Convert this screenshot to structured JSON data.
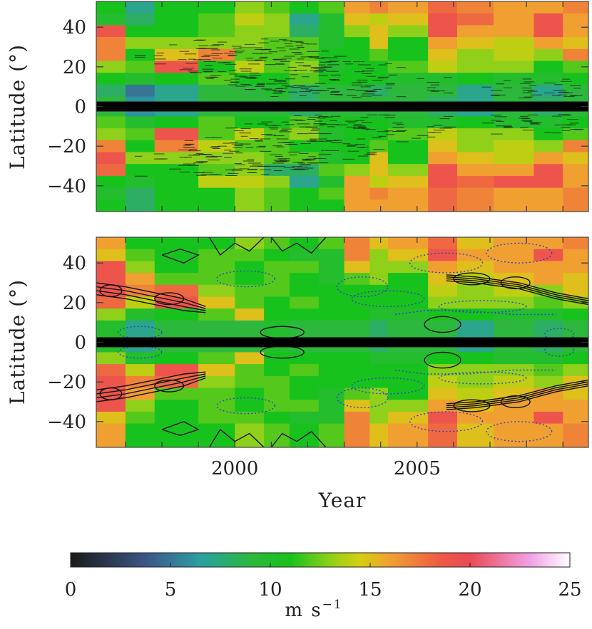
{
  "chart_data": [
    {
      "type": "heatmap",
      "panel": "top",
      "title": "",
      "xlabel": "",
      "ylabel": "Latitude (°)",
      "xlim": [
        1996.2,
        2009.7
      ],
      "ylim": [
        -53,
        53
      ],
      "y_ticks": [
        -40,
        -20,
        0,
        20,
        40
      ],
      "y_tick_labels": [
        "−40",
        "−20",
        "0",
        "20",
        "40"
      ],
      "x_ticks": [
        1997,
        1998,
        1999,
        2000,
        2001,
        2002,
        2003,
        2004,
        2005,
        2006,
        2007,
        2008,
        2009
      ],
      "x_tick_labels": [],
      "x_edges": [
        1996.2,
        1997.0,
        1997.8,
        1999.0,
        2000.0,
        2000.8,
        2001.5,
        2002.3,
        2003.0,
        2003.7,
        2004.2,
        2005.3,
        2006.1,
        2007.1,
        2008.2,
        2009.0,
        2009.7
      ],
      "y_edges": [
        -53,
        -47,
        -41,
        -35,
        -29,
        -23,
        -17,
        -11,
        -5,
        5,
        11,
        17,
        23,
        29,
        35,
        41,
        47,
        53
      ],
      "masked_band": [
        -2.5,
        2.5
      ],
      "overlay": "short horizontal dashes along active latitudes",
      "values_note": "rows from top (47..53) to bottom (-53..-47), flow speed in m/s",
      "values": [
        [
          11,
          7,
          11,
          11,
          13,
          12,
          11,
          12,
          16,
          17,
          16,
          18,
          17,
          16,
          16,
          17
        ],
        [
          10,
          8,
          11,
          12,
          14,
          13,
          7,
          10,
          15,
          14,
          15,
          19,
          18,
          16,
          19,
          16
        ],
        [
          19,
          11,
          11,
          12,
          13,
          13,
          8,
          10,
          13,
          15,
          13,
          19,
          16,
          16,
          19,
          16
        ],
        [
          17,
          13,
          13,
          13,
          13,
          12,
          12,
          10,
          11,
          15,
          11,
          16,
          15,
          14,
          16,
          15
        ],
        [
          17,
          11,
          15,
          17,
          12,
          12,
          12,
          11,
          11,
          12,
          11,
          15,
          13,
          14,
          13,
          17
        ],
        [
          13,
          12,
          19,
          11,
          14,
          12,
          13,
          10,
          11,
          11,
          12,
          14,
          13,
          13,
          11,
          12
        ],
        [
          11,
          10,
          11,
          12,
          11,
          11,
          12,
          11,
          11,
          11,
          10,
          10,
          11,
          10,
          10,
          11
        ],
        [
          8,
          5,
          7,
          9,
          9,
          10,
          8,
          9,
          9,
          8,
          9,
          9,
          7,
          9,
          7,
          9
        ],
        [
          9,
          6,
          7,
          9,
          9,
          9,
          8,
          9,
          9,
          9,
          9,
          8,
          7,
          9,
          8,
          9
        ],
        [
          12,
          10,
          11,
          12,
          11,
          11,
          12,
          11,
          11,
          11,
          10,
          10,
          11,
          10,
          10,
          11
        ],
        [
          13,
          12,
          19,
          12,
          14,
          12,
          13,
          10,
          11,
          11,
          12,
          14,
          13,
          13,
          11,
          12
        ],
        [
          17,
          11,
          17,
          14,
          12,
          12,
          11,
          11,
          11,
          12,
          11,
          15,
          13,
          14,
          13,
          17
        ],
        [
          19,
          13,
          13,
          13,
          13,
          12,
          12,
          10,
          11,
          15,
          11,
          16,
          15,
          14,
          16,
          15
        ],
        [
          18,
          11,
          11,
          12,
          13,
          8,
          8,
          12,
          13,
          15,
          13,
          19,
          16,
          16,
          19,
          16
        ],
        [
          11,
          10,
          11,
          14,
          14,
          13,
          7,
          10,
          16,
          14,
          15,
          19,
          18,
          19,
          19,
          16
        ],
        [
          10,
          8,
          11,
          11,
          13,
          12,
          11,
          12,
          16,
          17,
          16,
          18,
          17,
          16,
          16,
          17
        ],
        [
          11,
          8,
          11,
          11,
          13,
          12,
          11,
          11,
          16,
          16,
          16,
          18,
          17,
          16,
          16,
          17
        ]
      ]
    },
    {
      "type": "heatmap",
      "panel": "bottom",
      "title": "",
      "xlabel": "Year",
      "ylabel": "Latitude (°)",
      "xlim": [
        1996.2,
        2009.7
      ],
      "ylim": [
        -53,
        53
      ],
      "y_ticks": [
        -40,
        -20,
        0,
        20,
        40
      ],
      "y_tick_labels": [
        "−40",
        "−20",
        "0",
        "20",
        "40"
      ],
      "x_ticks": [
        1997,
        1998,
        1999,
        2000,
        2001,
        2002,
        2003,
        2004,
        2005,
        2006,
        2007,
        2008,
        2009
      ],
      "x_tick_labels": [
        "2000",
        "2005"
      ],
      "x_tick_label_years": [
        2000,
        2005
      ],
      "x_edges": [
        1996.2,
        1997.0,
        1997.8,
        1999.0,
        2000.0,
        2000.8,
        2001.5,
        2002.3,
        2003.0,
        2003.7,
        2004.2,
        2005.3,
        2006.1,
        2007.1,
        2008.2,
        2009.0,
        2009.7
      ],
      "y_edges": [
        -53,
        -47,
        -41,
        -35,
        -29,
        -23,
        -17,
        -11,
        -5,
        5,
        11,
        17,
        23,
        29,
        35,
        41,
        47,
        53
      ],
      "masked_band": [
        -2.5,
        2.5
      ],
      "overlay": "solid black positive contours and dotted blue negative contours",
      "values_note": "rows from top (47..53) to bottom (-53..-47), flow speed in m/s",
      "values": [
        [
          16,
          11,
          11,
          11,
          13,
          12,
          11,
          12,
          17,
          15,
          16,
          18,
          15,
          16,
          16,
          17
        ],
        [
          15,
          12,
          11,
          12,
          12,
          11,
          10,
          10,
          17,
          13,
          15,
          19,
          16,
          16,
          19,
          16
        ],
        [
          19,
          13,
          11,
          12,
          11,
          12,
          12,
          10,
          15,
          13,
          13,
          16,
          15,
          16,
          16,
          16
        ],
        [
          19,
          16,
          12,
          12,
          11,
          12,
          11,
          10,
          12,
          13,
          11,
          15,
          14,
          15,
          16,
          15
        ],
        [
          19,
          17,
          18,
          13,
          12,
          12,
          11,
          11,
          11,
          11,
          11,
          14,
          13,
          14,
          13,
          15
        ],
        [
          18,
          14,
          19,
          15,
          12,
          11,
          12,
          11,
          11,
          11,
          11,
          13,
          13,
          13,
          12,
          13
        ],
        [
          13,
          10,
          11,
          12,
          15,
          11,
          11,
          11,
          11,
          10,
          10,
          11,
          11,
          10,
          10,
          11
        ],
        [
          10,
          7,
          9,
          9,
          9,
          10,
          9,
          9,
          9,
          8,
          9,
          9,
          7,
          9,
          8,
          9
        ],
        [
          10,
          7,
          9,
          9,
          9,
          10,
          9,
          9,
          9,
          8,
          9,
          9,
          7,
          9,
          8,
          9
        ],
        [
          13,
          10,
          11,
          12,
          15,
          11,
          11,
          11,
          11,
          10,
          10,
          11,
          11,
          10,
          10,
          11
        ],
        [
          18,
          14,
          19,
          15,
          12,
          11,
          12,
          11,
          11,
          11,
          11,
          13,
          13,
          13,
          12,
          13
        ],
        [
          19,
          17,
          18,
          13,
          12,
          12,
          11,
          11,
          11,
          11,
          11,
          14,
          13,
          14,
          13,
          15
        ],
        [
          19,
          16,
          12,
          12,
          11,
          12,
          11,
          10,
          12,
          13,
          11,
          15,
          14,
          15,
          16,
          15
        ],
        [
          19,
          13,
          11,
          12,
          11,
          12,
          12,
          10,
          15,
          13,
          13,
          16,
          15,
          16,
          16,
          16
        ],
        [
          15,
          12,
          11,
          12,
          12,
          11,
          10,
          10,
          17,
          13,
          15,
          19,
          16,
          16,
          19,
          16
        ],
        [
          16,
          11,
          11,
          11,
          13,
          12,
          11,
          12,
          17,
          15,
          16,
          18,
          15,
          16,
          16,
          17
        ],
        [
          16,
          11,
          11,
          11,
          13,
          12,
          11,
          12,
          17,
          15,
          16,
          18,
          15,
          16,
          16,
          17
        ]
      ]
    },
    {
      "type": "colorbar",
      "range": [
        0,
        25
      ],
      "ticks": [
        0,
        5,
        10,
        15,
        20,
        25
      ],
      "tick_labels": [
        "0",
        "5",
        "10",
        "15",
        "20",
        "25"
      ],
      "label": "m s",
      "label_superscript": "−1",
      "stops": [
        {
          "v": 0,
          "c": "#1a1a1a"
        },
        {
          "v": 4,
          "c": "#3e5a8c"
        },
        {
          "v": 6.5,
          "c": "#2aa0a0"
        },
        {
          "v": 9,
          "c": "#2db83d"
        },
        {
          "v": 11,
          "c": "#18c21c"
        },
        {
          "v": 13,
          "c": "#8fd01a"
        },
        {
          "v": 14.5,
          "c": "#d6cf10"
        },
        {
          "v": 16,
          "c": "#f0a030"
        },
        {
          "v": 18.5,
          "c": "#ee5b47"
        },
        {
          "v": 20,
          "c": "#ea4a55"
        },
        {
          "v": 23,
          "c": "#f2a0e6"
        },
        {
          "v": 25,
          "c": "#ffffff"
        }
      ]
    }
  ]
}
